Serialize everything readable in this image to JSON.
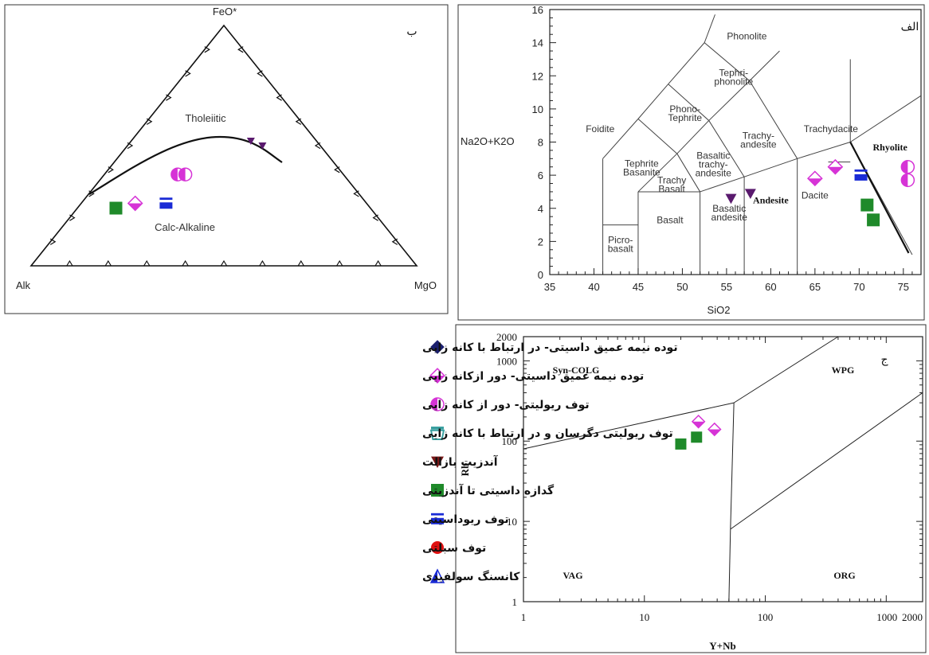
{
  "colors": {
    "magenta": "#d633d6",
    "purple": "#5a1a6e",
    "green": "#1f8a2a",
    "blue": "#1a2bd6",
    "navy": "#1b1f6e",
    "maroon": "#7a1818",
    "red": "#e01010",
    "cyan": "#3aa0a0"
  },
  "chart_data": [
    {
      "type": "scatter",
      "panel_letter": "ب",
      "vertices": {
        "top": "FeO*",
        "left": "Alk",
        "right": "MgO"
      },
      "field_labels": [
        "Tholeiitic",
        "Calc-Alkaline"
      ],
      "points_ternary": [
        {
          "symbol": "square",
          "color": "green",
          "values": [
            66,
            24,
            10
          ]
        },
        {
          "symbol": "diamond-half",
          "color": "magenta",
          "values": [
            60,
            26,
            14
          ]
        },
        {
          "symbol": "bar",
          "color": "blue",
          "values": [
            52,
            26,
            22
          ]
        },
        {
          "symbol": "half-circle",
          "color": "magenta",
          "values": [
            43,
            38,
            19
          ]
        },
        {
          "symbol": "half-circle",
          "color": "magenta",
          "values": [
            41,
            38,
            21
          ]
        },
        {
          "symbol": "triangle-down",
          "color": "purple",
          "values": [
            17,
            52,
            31
          ]
        },
        {
          "symbol": "triangle-down",
          "color": "purple",
          "values": [
            15,
            50,
            35
          ]
        }
      ]
    },
    {
      "type": "scatter",
      "panel_letter": "الف",
      "xlabel": "SiO2",
      "ylabel": "Na2O+K2O",
      "xlim": [
        35,
        77
      ],
      "ylim": [
        0,
        16
      ],
      "x_ticks": [
        "35",
        "40",
        "45",
        "50",
        "55",
        "60",
        "65",
        "70",
        "75"
      ],
      "y_ticks": [
        "0",
        "2",
        "4",
        "6",
        "8",
        "10",
        "12",
        "14",
        "16"
      ],
      "field_labels": [
        "Phonolite",
        "Tephri-\nphonolite",
        "Phono-\nTephrite",
        "Foidite",
        "Trachy-\nandesite",
        "Trachydacite",
        "Basaltic\ntrachy-\nandesite",
        "Tephrite\nBasanite",
        "Trachy\nBasalt",
        "Basalt",
        "Basaltic\nandesite",
        "Andesite",
        "Dacite",
        "Rhyolite",
        "Picro-\nbasalt"
      ],
      "points": [
        {
          "symbol": "triangle-down",
          "color": "purple",
          "x": 55.5,
          "y": 4.6
        },
        {
          "symbol": "triangle-down",
          "color": "purple",
          "x": 57.7,
          "y": 4.9
        },
        {
          "symbol": "diamond-half",
          "color": "magenta",
          "x": 65.0,
          "y": 5.8
        },
        {
          "symbol": "diamond-half",
          "color": "magenta",
          "x": 67.3,
          "y": 6.5
        },
        {
          "symbol": "bar",
          "color": "blue",
          "x": 70.2,
          "y": 6.0
        },
        {
          "symbol": "square",
          "color": "green",
          "x": 70.9,
          "y": 4.2
        },
        {
          "symbol": "square",
          "color": "green",
          "x": 71.6,
          "y": 3.3
        },
        {
          "symbol": "half-circle",
          "color": "magenta",
          "x": 75.5,
          "y": 6.5
        },
        {
          "symbol": "half-circle",
          "color": "magenta",
          "x": 75.5,
          "y": 5.7
        }
      ]
    },
    {
      "type": "scatter",
      "panel_letter": "ج",
      "xlabel": "Y+Nb",
      "ylabel": "Rb",
      "x_scale": "log",
      "y_scale": "log",
      "xlim": [
        1,
        2000
      ],
      "ylim": [
        1,
        2000
      ],
      "x_ticks": [
        "1",
        "10",
        "100",
        "1000",
        "2000"
      ],
      "y_ticks": [
        "1",
        "10",
        "100",
        "1000",
        "2000"
      ],
      "field_labels": [
        "Syn-COLG",
        "WPG",
        "VAG",
        "ORG"
      ],
      "points": [
        {
          "symbol": "square",
          "color": "green",
          "x": 20,
          "y": 92
        },
        {
          "symbol": "square",
          "color": "green",
          "x": 27,
          "y": 112
        },
        {
          "symbol": "diamond-half",
          "color": "magenta",
          "x": 28,
          "y": 175
        },
        {
          "symbol": "diamond-half",
          "color": "magenta",
          "x": 38,
          "y": 140
        }
      ]
    }
  ],
  "legend": [
    {
      "symbol": "diamond",
      "color": "navy",
      "label": "توده نیمه عمیق داسیتی- در ارتباط با کانه زایی"
    },
    {
      "symbol": "diamond-half",
      "color": "magenta",
      "label": "توده نیمه عمیق داسیتی- دور ازکانه زایی"
    },
    {
      "symbol": "half-circle",
      "color": "magenta",
      "label": "توف ریولیتی- دور از کانه زایی"
    },
    {
      "symbol": "cup",
      "color": "cyan",
      "label": "توف ریولیتی دگرسان و در ارتباط با کانه زایی"
    },
    {
      "symbol": "triangle-down",
      "color": "maroon",
      "label": "آندزیت بازالت"
    },
    {
      "symbol": "square",
      "color": "green",
      "label": "گدازه داسیتی تا آندزیتی"
    },
    {
      "symbol": "bar",
      "color": "blue",
      "label": "توف ریوداسیتی"
    },
    {
      "symbol": "circle",
      "color": "red",
      "label": "توف سبلتی"
    },
    {
      "symbol": "triangle-half",
      "color": "blue",
      "label": "کانسنگ سولفیدی"
    }
  ]
}
